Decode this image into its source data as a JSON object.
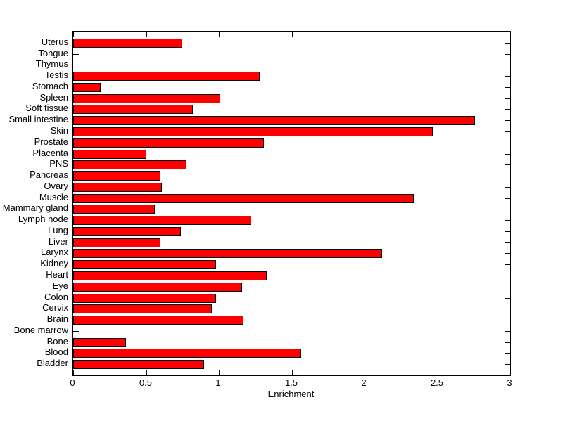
{
  "chart_data": {
    "type": "bar",
    "orientation": "horizontal",
    "title": "",
    "xlabel": "Enrichment",
    "ylabel": "",
    "xlim": [
      0,
      3
    ],
    "xticks": [
      0,
      0.5,
      1,
      1.5,
      2,
      2.5,
      3
    ],
    "xtick_labels": [
      "0",
      "0.5",
      "1",
      "1.5",
      "2",
      "2.5",
      "3"
    ],
    "grid": false,
    "legend": "none",
    "bar_color": "#FF0000",
    "bar_edge_color": "#000000",
    "background_color": "#FFFFFF",
    "categories": [
      "Uterus",
      "Tongue",
      "Thymus",
      "Testis",
      "Stomach",
      "Spleen",
      "Soft tissue",
      "Small intestine",
      "Skin",
      "Prostate",
      "Placenta",
      "PNS",
      "Pancreas",
      "Ovary",
      "Muscle",
      "Mammary gland",
      "Lymph node",
      "Lung",
      "Liver",
      "Larynx",
      "Kidney",
      "Heart",
      "Eye",
      "Colon",
      "Cervix",
      "Brain",
      "Bone marrow",
      "Bone",
      "Blood",
      "Bladder"
    ],
    "values": [
      0.75,
      0,
      0,
      1.28,
      0.19,
      1.01,
      0.82,
      2.76,
      2.47,
      1.31,
      0.5,
      0.78,
      0.6,
      0.61,
      2.34,
      0.56,
      1.22,
      0.74,
      0.6,
      2.12,
      0.98,
      1.33,
      1.16,
      0.98,
      0.95,
      1.17,
      0,
      0.36,
      1.56,
      0.9
    ]
  }
}
